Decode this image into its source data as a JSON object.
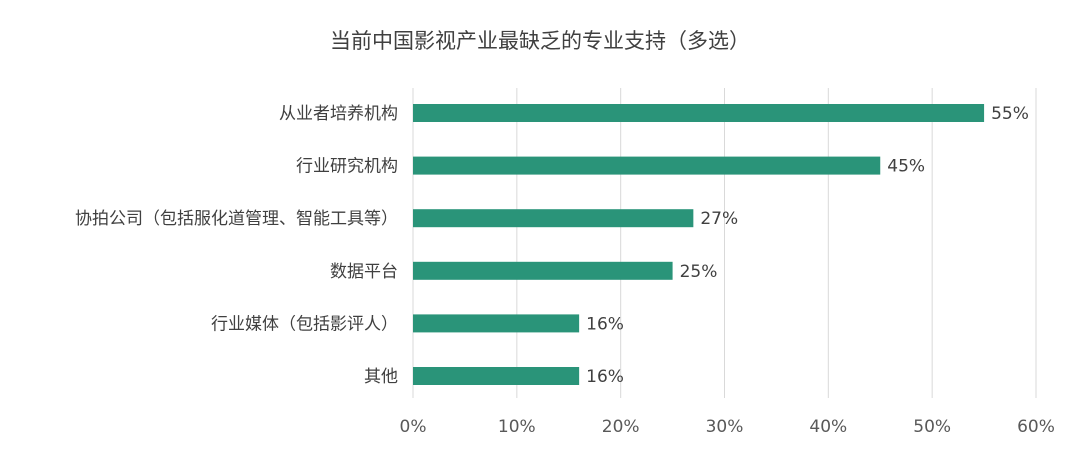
{
  "chart_data": {
    "type": "bar",
    "orientation": "horizontal",
    "title": "当前中国影视产业最缺乏的专业支持（多选）",
    "categories": [
      "从业者培养机构",
      "行业研究机构",
      "协拍公司（包括服化道管理、智能工具等）",
      "数据平台",
      "行业媒体（包括影评人）",
      "其他"
    ],
    "values": [
      55,
      45,
      27,
      25,
      16,
      16
    ],
    "value_labels": [
      "55%",
      "45%",
      "27%",
      "25%",
      "16%",
      "16%"
    ],
    "xlim": [
      0,
      60
    ],
    "xticks": [
      0,
      10,
      20,
      30,
      40,
      50,
      60
    ],
    "xtick_labels": [
      "0%",
      "10%",
      "20%",
      "30%",
      "40%",
      "50%",
      "60%"
    ],
    "grid": "vertical",
    "legend": "none",
    "colors": {
      "bar": "#2a9479",
      "grid": "#d9d9d9",
      "text": "#404040"
    }
  }
}
